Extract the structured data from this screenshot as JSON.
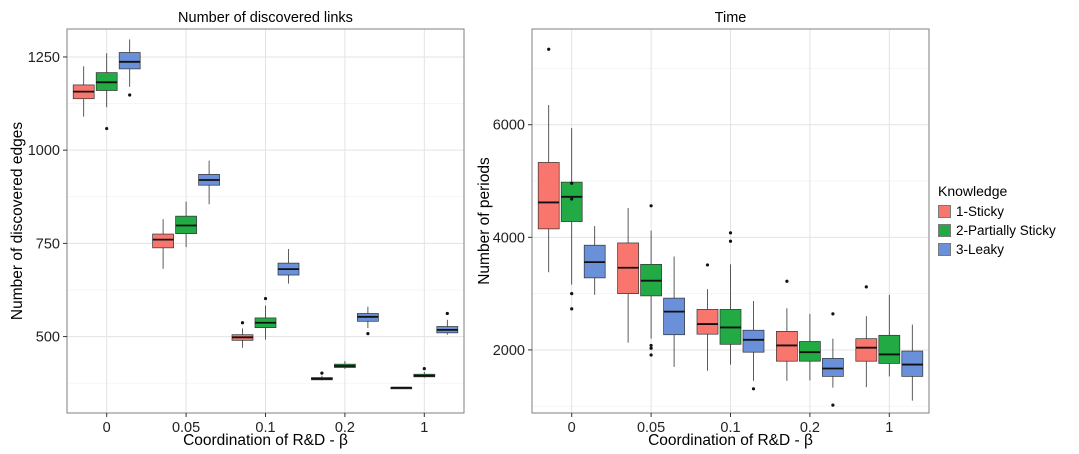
{
  "chart_data": [
    {
      "type": "box",
      "title": "Number of discovered links",
      "xlabel": "Coordination of R&D - β",
      "ylabel": "Number of discovered edges",
      "categories": [
        "0",
        "0.05",
        "0.1",
        "0.2",
        "1"
      ],
      "ylim": [
        295,
        1325
      ],
      "yticks": [
        500,
        750,
        1000,
        1250
      ],
      "grid": true,
      "series": [
        {
          "name": "1-Sticky",
          "color": "#F8766D",
          "boxes": [
            {
              "low": 1090,
              "q1": 1138,
              "median": 1157,
              "q3": 1175,
              "high": 1225,
              "outliers": []
            },
            {
              "low": 682,
              "q1": 738,
              "median": 760,
              "q3": 775,
              "high": 815,
              "outliers": []
            },
            {
              "low": 470,
              "q1": 490,
              "median": 498,
              "q3": 505,
              "high": 522,
              "outliers": [
                537
              ]
            },
            {
              "low": 383,
              "q1": 384,
              "median": 387,
              "q3": 390,
              "high": 395,
              "outliers": [
                402
              ]
            },
            {
              "low": 363,
              "q1": 363,
              "median": 363,
              "q3": 363,
              "high": 363,
              "outliers": []
            }
          ]
        },
        {
          "name": "2-Partially Sticky",
          "color": "#22AA44",
          "boxes": [
            {
              "low": 1115,
              "q1": 1160,
              "median": 1182,
              "q3": 1208,
              "high": 1260,
              "outliers": [
                1058
              ]
            },
            {
              "low": 740,
              "q1": 776,
              "median": 798,
              "q3": 823,
              "high": 862,
              "outliers": []
            },
            {
              "low": 492,
              "q1": 524,
              "median": 537,
              "q3": 550,
              "high": 583,
              "outliers": [
                602
              ]
            },
            {
              "low": 413,
              "q1": 417,
              "median": 421,
              "q3": 426,
              "high": 434,
              "outliers": []
            },
            {
              "low": 390,
              "q1": 392,
              "median": 395,
              "q3": 399,
              "high": 405,
              "outliers": [
                414
              ]
            }
          ]
        },
        {
          "name": "3-Leaky",
          "color": "#6990D8",
          "boxes": [
            {
              "low": 1170,
              "q1": 1218,
              "median": 1237,
              "q3": 1262,
              "high": 1297,
              "outliers": [
                1148
              ]
            },
            {
              "low": 855,
              "q1": 906,
              "median": 920,
              "q3": 935,
              "high": 972,
              "outliers": []
            },
            {
              "low": 642,
              "q1": 665,
              "median": 681,
              "q3": 697,
              "high": 735,
              "outliers": []
            },
            {
              "low": 523,
              "q1": 541,
              "median": 553,
              "q3": 562,
              "high": 580,
              "outliers": [
                508
              ]
            },
            {
              "low": 505,
              "q1": 510,
              "median": 518,
              "q3": 527,
              "high": 545,
              "outliers": [
                562
              ]
            }
          ]
        }
      ]
    },
    {
      "type": "box",
      "title": "Time",
      "xlabel": "Coordination of R&D - β",
      "ylabel": "Number of periods",
      "categories": [
        "0",
        "0.05",
        "0.1",
        "0.2",
        "1"
      ],
      "ylim": [
        880,
        7700
      ],
      "yticks": [
        2000,
        4000,
        6000
      ],
      "grid": true,
      "legend": {
        "title": "Knowledge",
        "position": "right"
      },
      "series": [
        {
          "name": "1-Sticky",
          "color": "#F8766D",
          "boxes": [
            {
              "low": 3380,
              "q1": 4150,
              "median": 4620,
              "q3": 5330,
              "high": 6350,
              "outliers": [
                7340
              ]
            },
            {
              "low": 2130,
              "q1": 3000,
              "median": 3460,
              "q3": 3900,
              "high": 4520,
              "outliers": []
            },
            {
              "low": 1630,
              "q1": 2280,
              "median": 2460,
              "q3": 2720,
              "high": 3080,
              "outliers": [
                3510
              ]
            },
            {
              "low": 1450,
              "q1": 1800,
              "median": 2080,
              "q3": 2330,
              "high": 2740,
              "outliers": [
                3220
              ]
            },
            {
              "low": 1340,
              "q1": 1800,
              "median": 2040,
              "q3": 2200,
              "high": 2600,
              "outliers": [
                3120
              ]
            }
          ]
        },
        {
          "name": "2-Partially Sticky",
          "color": "#22AA44",
          "boxes": [
            {
              "low": 3160,
              "q1": 4280,
              "median": 4720,
              "q3": 4980,
              "high": 5940,
              "outliers": [
                2730,
                3000,
                4680,
                4960
              ]
            },
            {
              "low": 2200,
              "q1": 2960,
              "median": 3230,
              "q3": 3520,
              "high": 4120,
              "outliers": [
                1910,
                2030,
                2080,
                4560
              ]
            },
            {
              "low": 1740,
              "q1": 2100,
              "median": 2400,
              "q3": 2720,
              "high": 3520,
              "outliers": [
                3930,
                4080
              ]
            },
            {
              "low": 1460,
              "q1": 1800,
              "median": 1960,
              "q3": 2150,
              "high": 2640,
              "outliers": []
            },
            {
              "low": 1530,
              "q1": 1760,
              "median": 1920,
              "q3": 2260,
              "high": 2980,
              "outliers": []
            }
          ]
        },
        {
          "name": "3-Leaky",
          "color": "#6990D8",
          "boxes": [
            {
              "low": 2980,
              "q1": 3280,
              "median": 3560,
              "q3": 3860,
              "high": 4200,
              "outliers": []
            },
            {
              "low": 1700,
              "q1": 2270,
              "median": 2680,
              "q3": 2920,
              "high": 3660,
              "outliers": []
            },
            {
              "low": 1450,
              "q1": 1960,
              "median": 2180,
              "q3": 2350,
              "high": 2870,
              "outliers": [
                1310
              ]
            },
            {
              "low": 1330,
              "q1": 1530,
              "median": 1670,
              "q3": 1850,
              "high": 2200,
              "outliers": [
                1020,
                2640
              ]
            },
            {
              "low": 1100,
              "q1": 1530,
              "median": 1740,
              "q3": 1980,
              "high": 2450,
              "outliers": []
            }
          ]
        }
      ]
    }
  ]
}
